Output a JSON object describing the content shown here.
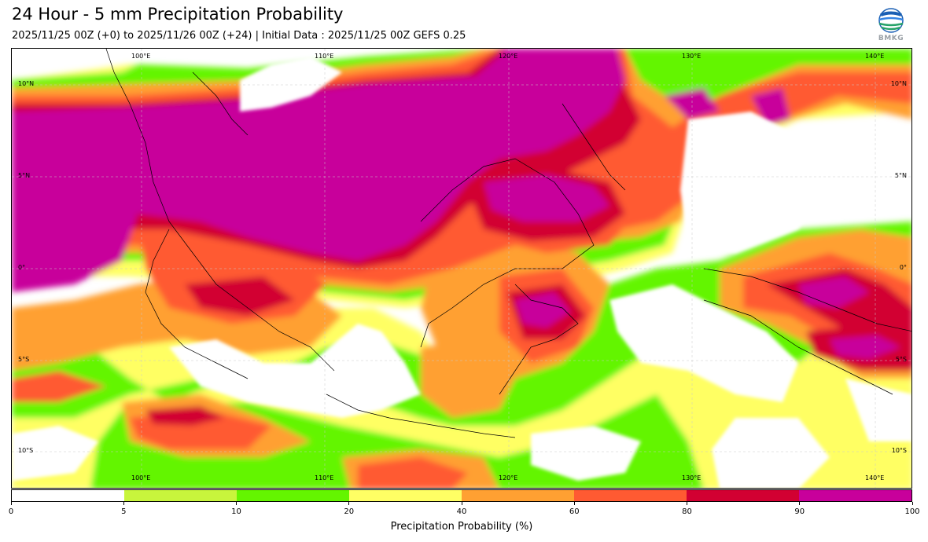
{
  "header": {
    "title": "24 Hour - 5 mm Precipitation Probability",
    "subtitle": "2025/11/25 00Z (+0) to 2025/11/26 00Z (+24) | Initial Data : 2025/11/25 00Z GEFS 0.25",
    "logo_text": "BMKG"
  },
  "map": {
    "lon_labels_top": [
      "100°E",
      "110°E",
      "120°E",
      "130°E",
      "140°E"
    ],
    "lon_labels_bottom": [
      "100°E",
      "110°E",
      "120°E",
      "130°E",
      "140°E"
    ],
    "lat_labels_left": [
      "10°N",
      "5°N",
      "0°",
      "5°S",
      "10°S"
    ],
    "lat_labels_right": [
      "10°N",
      "5°N",
      "0°",
      "5°S",
      "10°S"
    ]
  },
  "colorbar": {
    "label": "Precipitation Probability (%)",
    "ticks": [
      "0",
      "5",
      "10",
      "20",
      "40",
      "60",
      "80",
      "90",
      "100"
    ],
    "colors": [
      "#ffffff",
      "#c8f53c",
      "#64f500",
      "#ffff64",
      "#ffa032",
      "#ff5a32",
      "#d20032",
      "#c8009b"
    ]
  }
}
